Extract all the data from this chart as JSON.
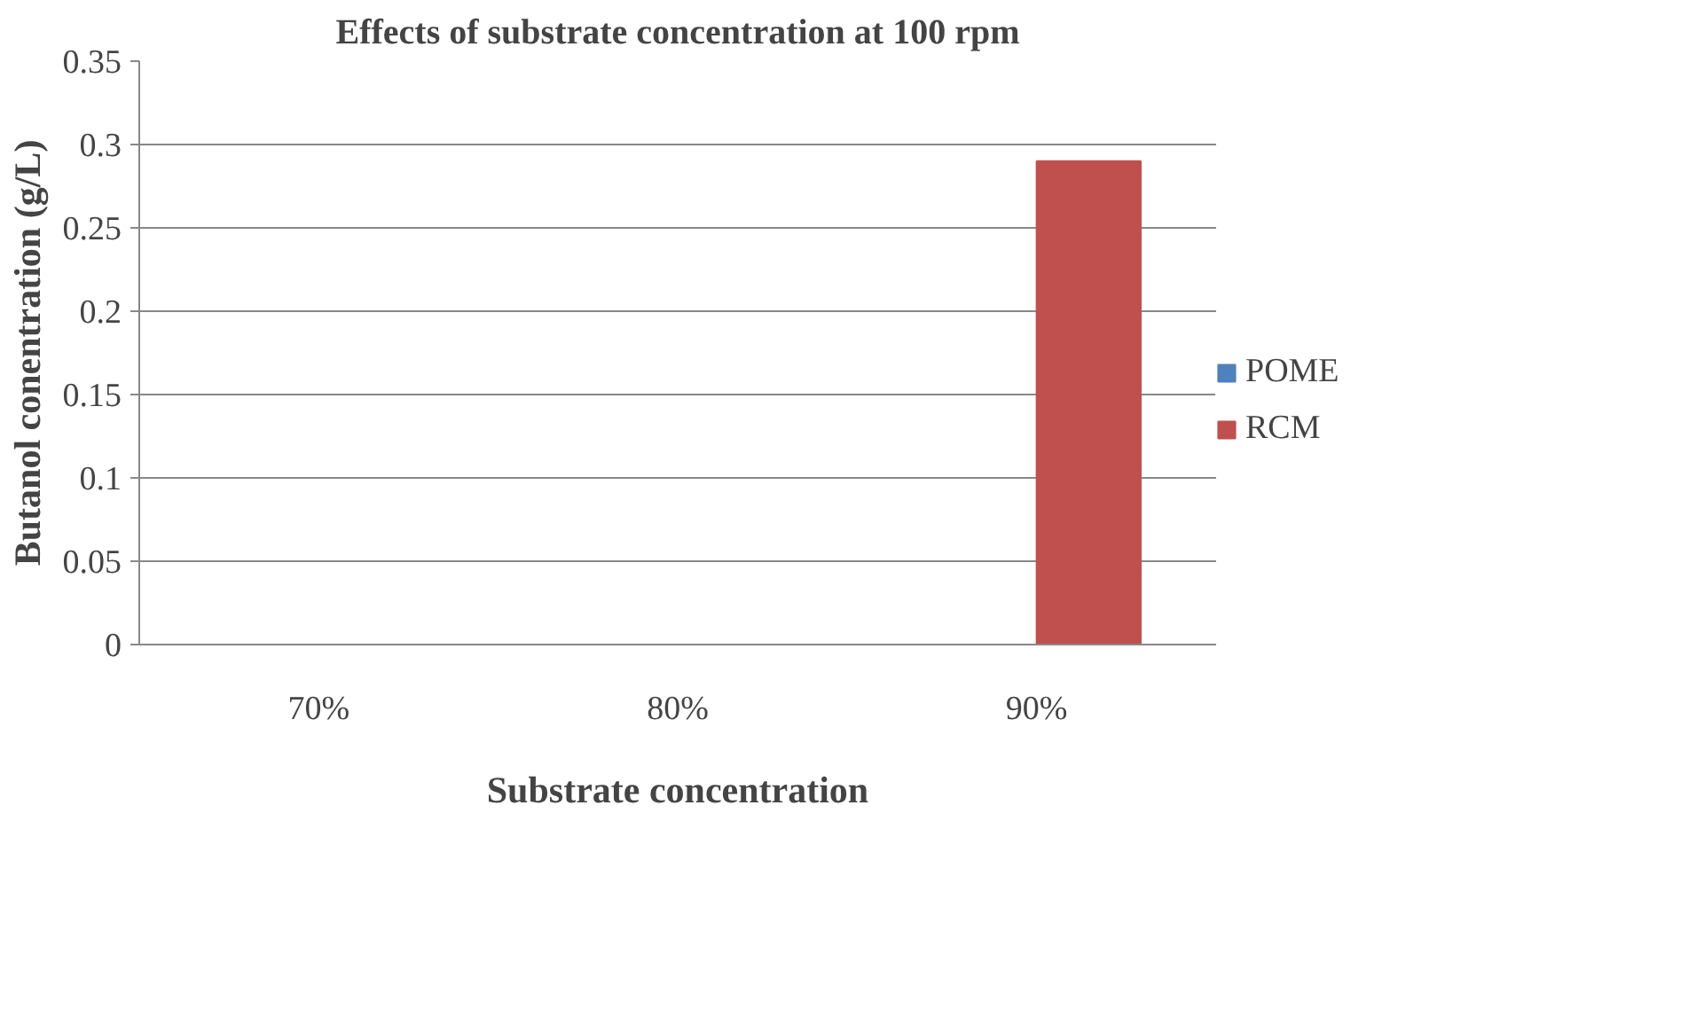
{
  "chart_data": {
    "type": "bar",
    "title": "Effects of substrate concentration at 100 rpm",
    "xlabel": "Substrate concentration",
    "ylabel": "Butanol conentration (g/L)",
    "categories": [
      "70%",
      "80%",
      "90%"
    ],
    "series": [
      {
        "name": "POME",
        "color": "#4f81bd",
        "values": [
          0,
          0,
          0
        ]
      },
      {
        "name": "RCM",
        "color": "#c0504d",
        "values": [
          0,
          0,
          0.29
        ]
      }
    ],
    "ylim": [
      0,
      0.35
    ],
    "yticks": [
      0,
      0.05,
      0.1,
      0.15,
      0.2,
      0.25,
      0.3,
      0.35
    ],
    "grid": "y",
    "legend": "right"
  }
}
